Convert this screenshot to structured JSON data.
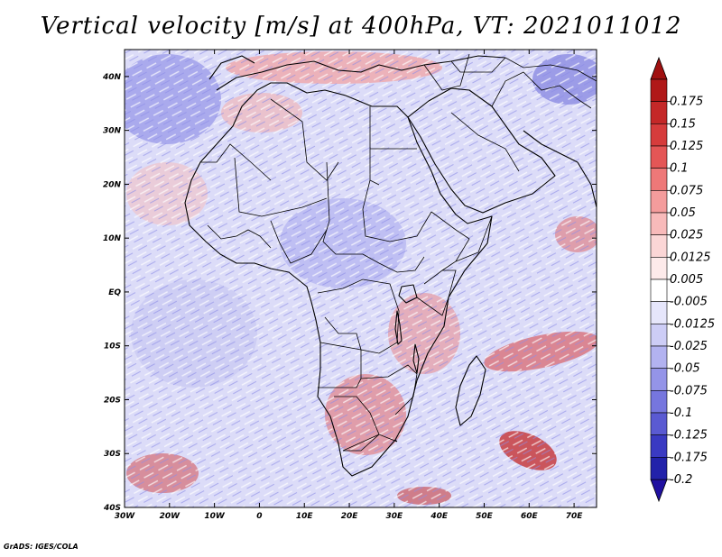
{
  "title": "Vertical velocity [m/s] at 400hPa, VT: 2021011012",
  "credit": "GrADS: IGES/COLA",
  "map": {
    "lon_range": [
      -30,
      75
    ],
    "lat_range": [
      -40,
      45
    ],
    "lat_ticks": [
      {
        "value": 40,
        "label": "40N"
      },
      {
        "value": 30,
        "label": "30N"
      },
      {
        "value": 20,
        "label": "20N"
      },
      {
        "value": 10,
        "label": "10N"
      },
      {
        "value": 0,
        "label": "EQ"
      },
      {
        "value": -10,
        "label": "10S"
      },
      {
        "value": -20,
        "label": "20S"
      },
      {
        "value": -30,
        "label": "30S"
      },
      {
        "value": -40,
        "label": "40S"
      }
    ],
    "lon_ticks": [
      {
        "value": -30,
        "label": "30W"
      },
      {
        "value": -20,
        "label": "20W"
      },
      {
        "value": -10,
        "label": "10W"
      },
      {
        "value": 0,
        "label": "0"
      },
      {
        "value": 10,
        "label": "10E"
      },
      {
        "value": 20,
        "label": "20E"
      },
      {
        "value": 30,
        "label": "30E"
      },
      {
        "value": 40,
        "label": "40E"
      },
      {
        "value": 50,
        "label": "50E"
      },
      {
        "value": 60,
        "label": "60E"
      },
      {
        "value": 70,
        "label": "70E"
      }
    ],
    "background_color": "#dcdcf8"
  },
  "colorbar": {
    "levels": [
      {
        "label": "0.175",
        "color": "#b01818"
      },
      {
        "label": "0.15",
        "color": "#c42828"
      },
      {
        "label": "0.125",
        "color": "#d63c3c"
      },
      {
        "label": "0.1",
        "color": "#e45656"
      },
      {
        "label": "0.075",
        "color": "#ee7878"
      },
      {
        "label": "0.05",
        "color": "#f49c9c"
      },
      {
        "label": "0.025",
        "color": "#f8baba"
      },
      {
        "label": "0.0125",
        "color": "#fbd6d6"
      },
      {
        "label": "0.005",
        "color": "#fdeaea"
      },
      {
        "label": "-0.005",
        "color": "#ffffff"
      },
      {
        "label": "-0.0125",
        "color": "#e6e6fb"
      },
      {
        "label": "-0.025",
        "color": "#cdcdf6"
      },
      {
        "label": "-0.05",
        "color": "#b2b2f0"
      },
      {
        "label": "-0.075",
        "color": "#9494e8"
      },
      {
        "label": "-0.1",
        "color": "#7676de"
      },
      {
        "label": "-0.125",
        "color": "#5a5ad2"
      },
      {
        "label": "-0.175",
        "color": "#3a3ac2"
      },
      {
        "label": "-0.2",
        "color": "#2222aa"
      }
    ],
    "top_arrow_color": "#a01010",
    "bottom_arrow_color": "#2010a0"
  }
}
